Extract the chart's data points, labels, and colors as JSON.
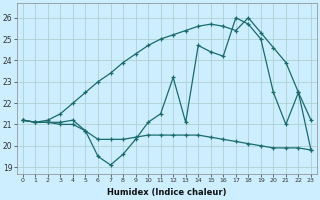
{
  "xlabel": "Humidex (Indice chaleur)",
  "bg_color": "#cceeff",
  "grid_color": "#aacccc",
  "line_color": "#1a6b6b",
  "xlim": [
    -0.5,
    23.5
  ],
  "ylim": [
    18.7,
    26.7
  ],
  "yticks": [
    19,
    20,
    21,
    22,
    23,
    24,
    25,
    26
  ],
  "xticks": [
    0,
    1,
    2,
    3,
    4,
    5,
    6,
    7,
    8,
    9,
    10,
    11,
    12,
    13,
    14,
    15,
    16,
    17,
    18,
    19,
    20,
    21,
    22,
    23
  ],
  "line1_x": [
    0,
    1,
    2,
    3,
    4,
    5,
    6,
    7,
    8,
    9,
    10,
    11,
    12,
    13,
    14,
    15,
    16,
    17,
    18,
    19,
    20,
    21,
    22,
    23
  ],
  "line1_y": [
    21.2,
    21.1,
    21.1,
    21.0,
    21.0,
    20.7,
    20.3,
    20.3,
    20.3,
    20.4,
    20.5,
    20.5,
    20.5,
    20.5,
    20.5,
    20.4,
    20.3,
    20.2,
    20.1,
    20.0,
    19.9,
    19.9,
    19.9,
    19.8
  ],
  "line2_x": [
    0,
    1,
    2,
    3,
    4,
    5,
    6,
    7,
    8,
    9,
    10,
    11,
    12,
    13,
    14,
    15,
    16,
    17,
    18,
    19,
    20,
    21,
    22,
    23
  ],
  "line2_y": [
    21.2,
    21.1,
    21.1,
    21.1,
    21.2,
    20.7,
    19.5,
    19.1,
    19.6,
    20.3,
    21.1,
    21.5,
    23.2,
    21.1,
    24.7,
    24.4,
    24.2,
    26.0,
    25.7,
    25.0,
    22.5,
    21.0,
    22.5,
    19.8
  ],
  "line3_x": [
    0,
    1,
    2,
    3,
    4,
    5,
    6,
    7,
    8,
    9,
    10,
    11,
    12,
    13,
    14,
    15,
    16,
    17,
    18,
    19,
    20,
    21,
    22,
    23
  ],
  "line3_y": [
    21.2,
    21.1,
    21.2,
    21.5,
    22.0,
    22.5,
    23.0,
    23.4,
    23.9,
    24.3,
    24.7,
    25.0,
    25.2,
    25.4,
    25.6,
    25.7,
    25.6,
    25.4,
    26.0,
    25.3,
    24.6,
    23.9,
    22.5,
    21.2
  ]
}
